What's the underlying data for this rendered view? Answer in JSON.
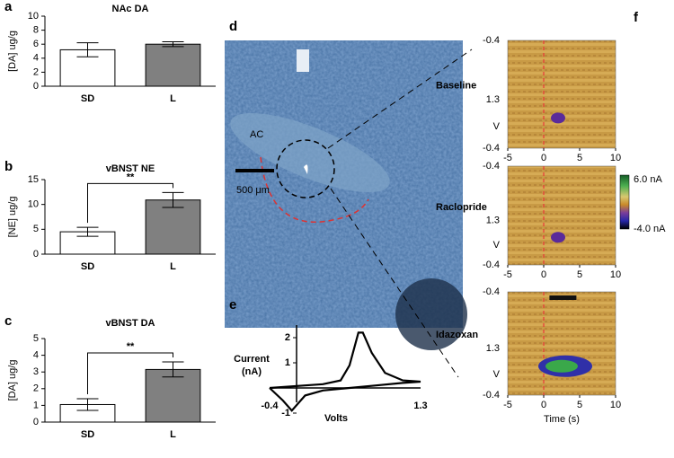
{
  "chart_data": [
    {
      "type": "bar",
      "panel_label": "a",
      "title": "NAc DA",
      "ylabel": "[DA] ug/g",
      "categories": [
        "SD",
        "L"
      ],
      "values": [
        5.2,
        6.0
      ],
      "errors": [
        1.0,
        0.35
      ],
      "colors": [
        "#ffffff",
        "#808080"
      ],
      "ylim": [
        0,
        10
      ],
      "yticks": [
        0,
        2,
        4,
        6,
        8,
        10
      ]
    },
    {
      "type": "bar",
      "panel_label": "b",
      "title": "vBNST NE",
      "ylabel": "[NE] ug/g",
      "categories": [
        "SD",
        "L"
      ],
      "values": [
        4.5,
        10.9
      ],
      "errors": [
        0.9,
        1.5
      ],
      "colors": [
        "#ffffff",
        "#808080"
      ],
      "ylim": [
        0,
        15
      ],
      "yticks": [
        0,
        5,
        10,
        15
      ],
      "significance": "**"
    },
    {
      "type": "bar",
      "panel_label": "c",
      "title": "vBNST DA",
      "ylabel": "[DA] ug/g",
      "categories": [
        "SD",
        "L"
      ],
      "values": [
        1.05,
        3.15
      ],
      "errors": [
        0.35,
        0.45
      ],
      "colors": [
        "#ffffff",
        "#808080"
      ],
      "ylim": [
        0,
        5
      ],
      "yticks": [
        0,
        1,
        2,
        3,
        4,
        5
      ],
      "significance": "**"
    },
    {
      "type": "line",
      "panel_label": "e",
      "xlabel": "Volts",
      "ylabel_lines": [
        "Current",
        "(nA)"
      ],
      "x": [
        -0.4,
        -0.2,
        0,
        0.2,
        0.4,
        0.5,
        0.6,
        0.65,
        0.75,
        0.9,
        1.1,
        1.3,
        1.1,
        0.8,
        0.5,
        0.2,
        0,
        -0.15,
        -0.25,
        -0.4
      ],
      "values": [
        0,
        0.05,
        0.1,
        0.15,
        0.3,
        0.9,
        2.2,
        2.2,
        1.4,
        0.6,
        0.3,
        0.25,
        0.2,
        0.1,
        0,
        -0.1,
        -0.3,
        -0.9,
        -0.5,
        0
      ],
      "color": "#000000",
      "xlim": [
        -0.4,
        1.3
      ],
      "ylim": [
        -1,
        2.5
      ],
      "xticks": [
        -0.4,
        1.3
      ],
      "yticks": [
        -1,
        1,
        2
      ]
    }
  ],
  "panel_d": {
    "panel_label": "d",
    "region_label": "AC",
    "scale_label": "500 μm"
  },
  "panel_f": {
    "panel_label": "f",
    "plots": [
      "Baseline",
      "Raclopride",
      "Idazoxan"
    ],
    "ytick_labels": [
      "-0.4",
      "1.3",
      "V",
      "-0.4"
    ],
    "xlim": [
      -5,
      10
    ],
    "xticks": [
      -5,
      0,
      5,
      10
    ],
    "xlabel": "Time (s)",
    "colorbar_max": "6.0 nA",
    "colorbar_min": "-4.0 nA"
  }
}
